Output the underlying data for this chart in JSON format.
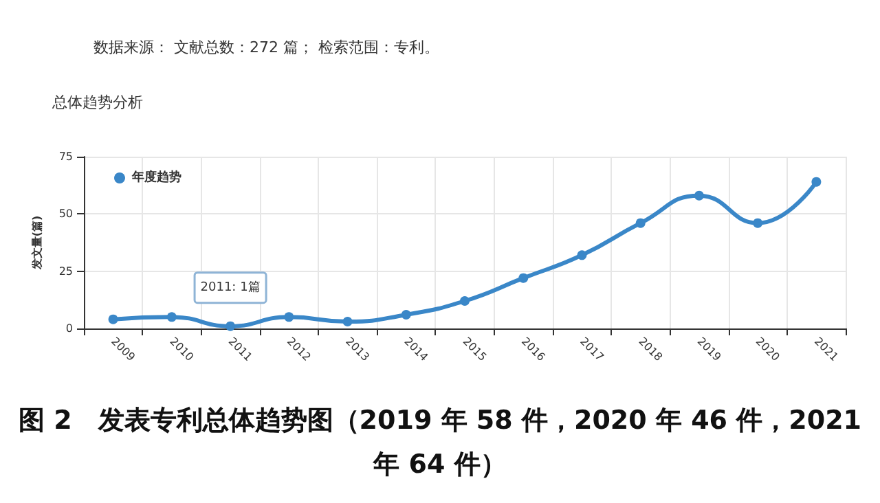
{
  "chart_data": {
    "type": "line",
    "title": "数据来源： 文献总数：272 篇； 检索范围：专利。",
    "subtitle": "总体趋势分析",
    "categories": [
      "2009",
      "2010",
      "2011",
      "2012",
      "2013",
      "2014",
      "2015",
      "2016",
      "2017",
      "2018",
      "2019",
      "2020",
      "2021"
    ],
    "series": [
      {
        "name": "年度趋势",
        "color": "#3a87c8",
        "values": [
          4,
          5,
          1,
          5,
          3,
          6,
          12,
          22,
          32,
          46,
          58,
          46,
          64
        ]
      }
    ],
    "ylabel": "发文量(篇)",
    "ylim": [
      0,
      75
    ],
    "yticks": [
      0,
      25,
      50,
      75
    ],
    "grid": true,
    "legend": "top left",
    "marker": "circle",
    "line_style": "solid",
    "annotations": [
      {
        "text": "2011: 1篇",
        "x": "2011",
        "y": 1
      },
      "图 2　发表专利总体趋势图（2019 年 58 件，2020 年 46 件，2021 年 64 件）"
    ]
  }
}
